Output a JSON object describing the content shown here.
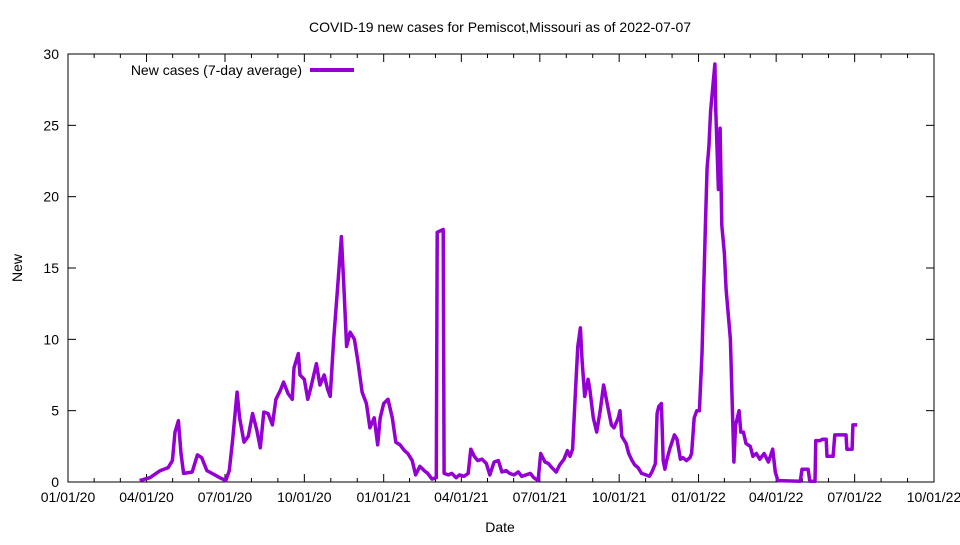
{
  "chart_data": {
    "type": "line",
    "title": "COVID-19 new cases for Pemiscot,Missouri as of 2022-07-07",
    "xlabel": "Date",
    "ylabel": "New",
    "x_units": "days since 2020-01-01",
    "xlim": [
      0,
      1004
    ],
    "ylim": [
      0,
      30
    ],
    "yticks": [
      0,
      5,
      10,
      15,
      20,
      25,
      30
    ],
    "xticks": [
      {
        "day": 0,
        "label": "01/01/20"
      },
      {
        "day": 91,
        "label": "04/01/20"
      },
      {
        "day": 182,
        "label": "07/01/20"
      },
      {
        "day": 274,
        "label": "10/01/20"
      },
      {
        "day": 366,
        "label": "01/01/21"
      },
      {
        "day": 456,
        "label": "04/01/21"
      },
      {
        "day": 547,
        "label": "07/01/21"
      },
      {
        "day": 639,
        "label": "10/01/21"
      },
      {
        "day": 731,
        "label": "01/01/22"
      },
      {
        "day": 821,
        "label": "04/01/22"
      },
      {
        "day": 912,
        "label": "07/01/22"
      },
      {
        "day": 1004,
        "label": "10/01/22"
      }
    ],
    "legend_position": "top-left",
    "grid": false,
    "series": [
      {
        "name": "New cases (7-day average)",
        "color": "#9400d3",
        "x": [
          83,
          95,
          107,
          116,
          121,
          124,
          128,
          131,
          134,
          144,
          150,
          155,
          161,
          167,
          176,
          183,
          187,
          191,
          196,
          199,
          204,
          209,
          214,
          219,
          223,
          227,
          232,
          237,
          241,
          246,
          250,
          255,
          260,
          262,
          267,
          269,
          274,
          278,
          281,
          283,
          288,
          292,
          297,
          301,
          304,
          308,
          313,
          317,
          320,
          323,
          327,
          332,
          336,
          341,
          346,
          350,
          355,
          359,
          362,
          366,
          371,
          376,
          380,
          385,
          390,
          394,
          399,
          403,
          408,
          413,
          417,
          422,
          427,
          428,
          435,
          436,
          441,
          445,
          450,
          454,
          459,
          464,
          467,
          471,
          475,
          480,
          485,
          489,
          494,
          499,
          503,
          508,
          512,
          517,
          522,
          526,
          531,
          536,
          540,
          545,
          548,
          553,
          557,
          561,
          566,
          570,
          575,
          579,
          582,
          585,
          588,
          591,
          594,
          596,
          599,
          603,
          605,
          609,
          613,
          617,
          621,
          626,
          630,
          633,
          638,
          640,
          642,
          647,
          650,
          654,
          657,
          661,
          665,
          670,
          674,
          677,
          681,
          683,
          685,
          688,
          690,
          692,
          694,
          698,
          703,
          706,
          710,
          713,
          717,
          721,
          723,
          726,
          729,
          732,
          735,
          739,
          741,
          743,
          745,
          748,
          750,
          751,
          754,
          756,
          758,
          761,
          763,
          768,
          772,
          774,
          778,
          780,
          783,
          786,
          791,
          794,
          798,
          802,
          807,
          812,
          817,
          820,
          823,
          849,
          851,
          858,
          860,
          866,
          867,
          872,
          875,
          879,
          880,
          887,
          889,
          902,
          903,
          909,
          910,
          915
        ],
        "y": [
          0.1,
          0.3,
          0.8,
          1.0,
          1.5,
          3.5,
          4.3,
          2.0,
          0.6,
          0.7,
          1.9,
          1.7,
          0.8,
          0.6,
          0.3,
          0.1,
          0.8,
          3.0,
          6.3,
          4.5,
          2.8,
          3.2,
          4.8,
          3.6,
          2.4,
          4.9,
          4.8,
          4.0,
          5.8,
          6.4,
          7.0,
          6.2,
          5.8,
          8.0,
          9.0,
          7.5,
          7.2,
          5.8,
          6.5,
          7.0,
          8.3,
          6.8,
          7.5,
          6.5,
          6.0,
          10.0,
          14.0,
          17.2,
          13.5,
          9.5,
          10.5,
          10.0,
          8.5,
          6.3,
          5.5,
          3.8,
          4.5,
          2.6,
          4.5,
          5.5,
          5.8,
          4.5,
          2.8,
          2.6,
          2.2,
          2.0,
          1.5,
          0.5,
          1.1,
          0.8,
          0.6,
          0.2,
          0.3,
          17.5,
          17.7,
          0.6,
          0.5,
          0.6,
          0.3,
          0.5,
          0.4,
          0.6,
          2.3,
          1.8,
          1.5,
          1.6,
          1.3,
          0.5,
          1.4,
          1.5,
          0.7,
          0.8,
          0.6,
          0.5,
          0.7,
          0.4,
          0.5,
          0.6,
          0.3,
          0.1,
          2.0,
          1.4,
          1.3,
          1.0,
          0.7,
          1.2,
          1.6,
          2.2,
          1.8,
          2.3,
          6.0,
          9.5,
          10.8,
          8.5,
          6.0,
          7.2,
          6.5,
          4.5,
          3.5,
          5.0,
          6.8,
          5.2,
          4.0,
          3.8,
          4.5,
          5.0,
          3.2,
          2.7,
          2.0,
          1.5,
          1.2,
          1.0,
          0.6,
          0.5,
          0.4,
          0.7,
          1.3,
          4.8,
          5.3,
          5.5,
          1.5,
          0.9,
          1.5,
          2.4,
          3.3,
          3.0,
          1.6,
          1.7,
          1.5,
          1.7,
          2.0,
          4.5,
          5.0,
          5.0,
          9.0,
          18.0,
          22.0,
          23.5,
          26.0,
          28.0,
          29.3,
          26.0,
          20.5,
          24.8,
          18.0,
          16.0,
          13.5,
          10.0,
          1.4,
          4.0,
          5.0,
          3.5,
          3.5,
          2.7,
          2.5,
          1.8,
          2.0,
          1.6,
          2.0,
          1.4,
          2.3,
          0.7,
          0.1,
          0.05,
          0.9,
          0.9,
          0.05,
          0.05,
          2.9,
          2.9,
          3.0,
          3.0,
          1.8,
          1.8,
          3.3,
          3.3,
          2.3,
          2.3,
          4.0,
          4.0
        ]
      }
    ]
  }
}
